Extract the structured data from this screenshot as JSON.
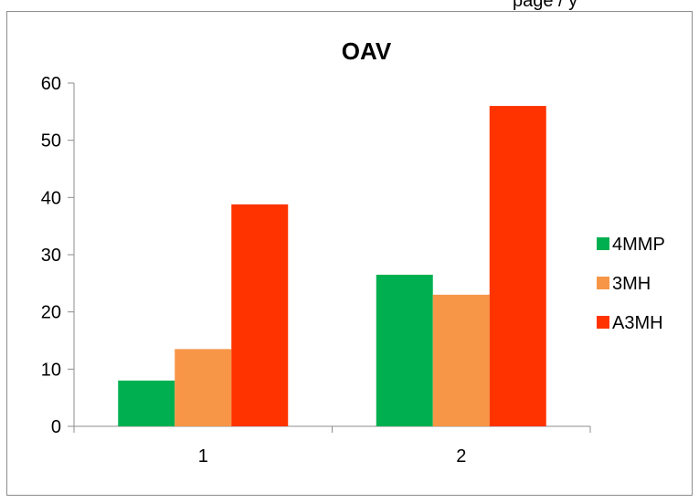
{
  "page_header": {
    "clipped_text": "page / y"
  },
  "chart_data": {
    "type": "bar",
    "title": "OAV",
    "categories": [
      "1",
      "2"
    ],
    "series": [
      {
        "name": "4MMP",
        "values": [
          8,
          26.5
        ],
        "color": "#00b050"
      },
      {
        "name": "3MH",
        "values": [
          13.5,
          23
        ],
        "color": "#f79646"
      },
      {
        "name": "A3MH",
        "values": [
          38.8,
          56
        ],
        "color": "#ff3300"
      }
    ],
    "xlabel": "",
    "ylabel": "",
    "ylim": [
      0,
      60
    ],
    "yticks": [
      0,
      10,
      20,
      30,
      40,
      50,
      60
    ],
    "grid": false,
    "legend_position": "right"
  }
}
